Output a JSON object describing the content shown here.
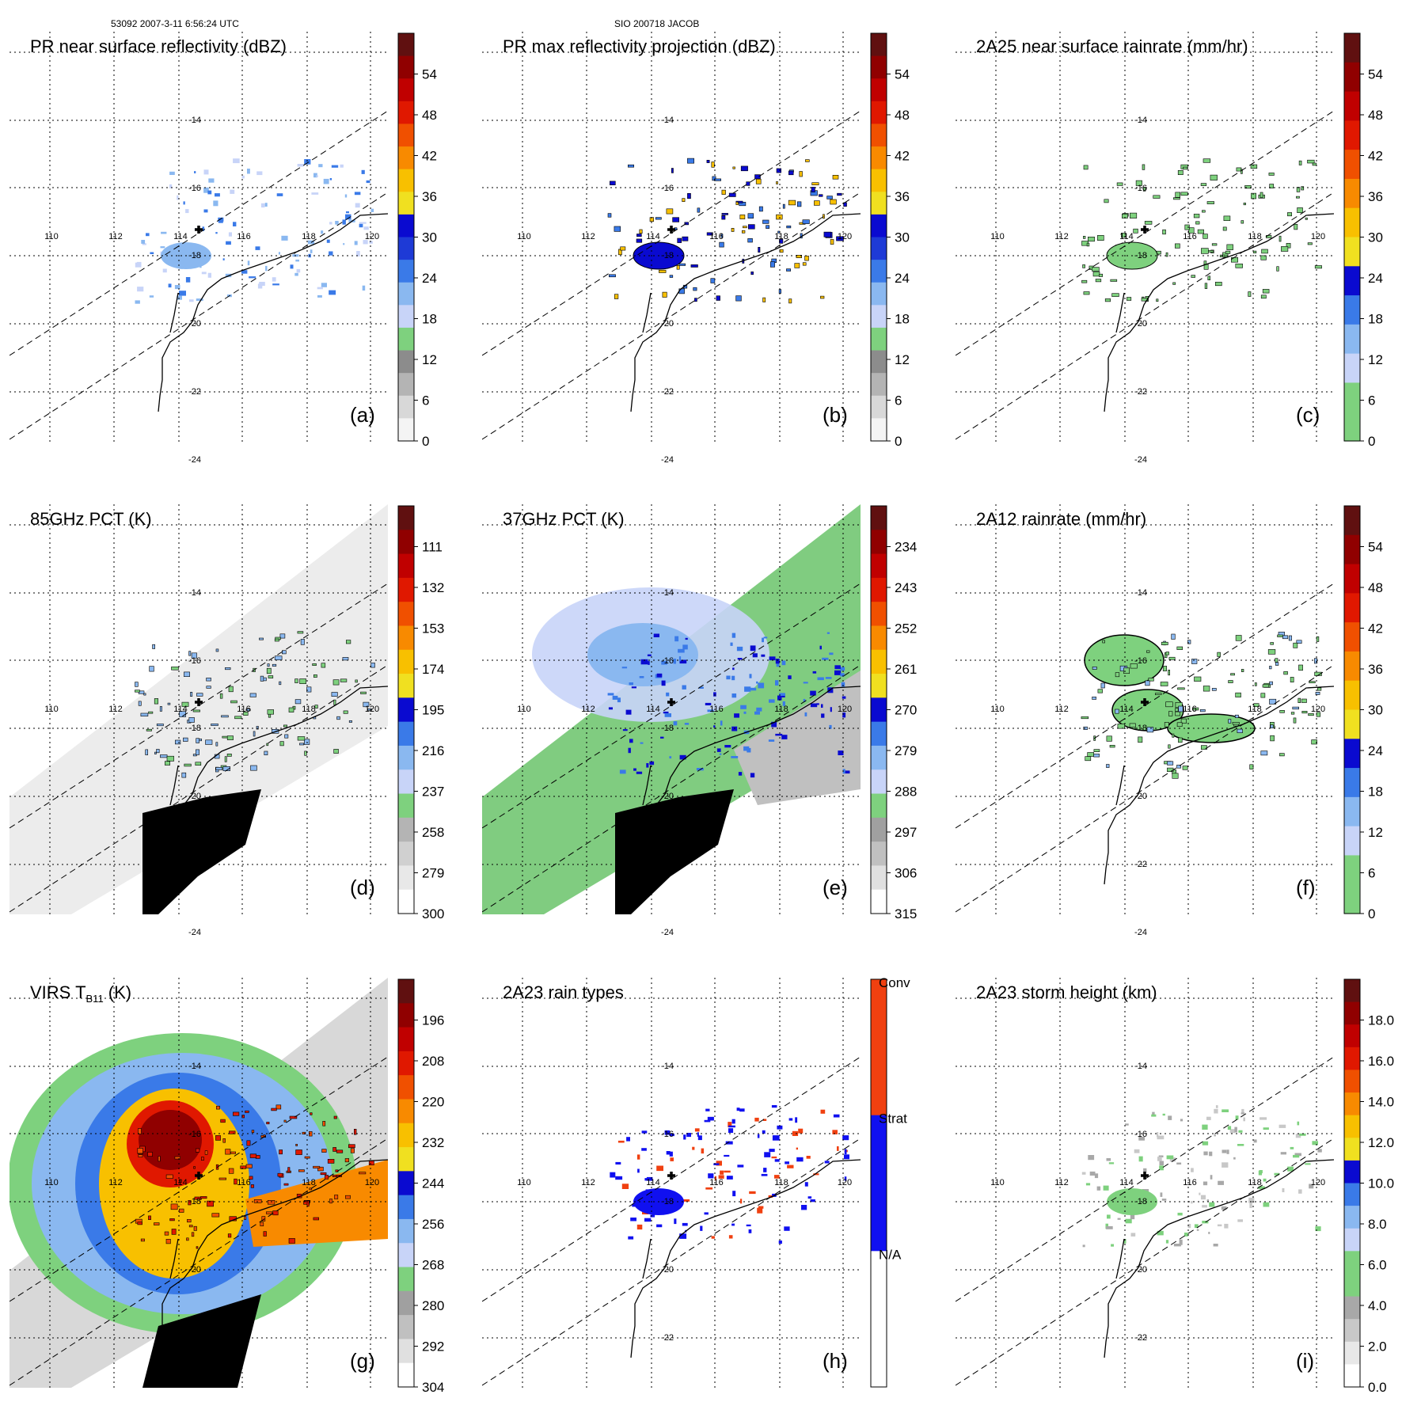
{
  "header": {
    "left": "53092 2007-3-11 6:56:24 UTC",
    "center": "SIO 200718 JACOB"
  },
  "map": {
    "lon_labels": [
      "110",
      "112",
      "114",
      "116",
      "118",
      "120"
    ],
    "lat_labels": [
      "-14",
      "-16",
      "-18",
      "-20",
      "-22",
      "-24"
    ],
    "storm_center_marker": "plus-marker"
  },
  "chart_data": [
    {
      "type": "heatmap",
      "panel": "(a)",
      "title": "PR near surface reflectivity (dBZ)",
      "colorbar": {
        "ticks": [
          "0",
          "6",
          "12",
          "18",
          "24",
          "30",
          "36",
          "42",
          "48",
          "54"
        ],
        "colors": [
          "#f4f4f4",
          "#d8d8d8",
          "#b4b4b4",
          "#8c8c8c",
          "#7ed17e",
          "#c8d4f8",
          "#8ab8f0",
          "#3a7ae8",
          "#1e3ad6",
          "#0a0ad0",
          "#f0e020",
          "#f8c000",
          "#f88a00",
          "#f05000",
          "#e01800",
          "#c00000",
          "#900000",
          "#601010"
        ]
      },
      "features": {
        "rain_field": "blue-stratiform",
        "clouds": "none",
        "contours": false
      }
    },
    {
      "type": "heatmap",
      "panel": "(b)",
      "title": "PR max reflectivity projection (dBZ)",
      "colorbar": {
        "ticks": [
          "0",
          "6",
          "12",
          "18",
          "24",
          "30",
          "36",
          "42",
          "48",
          "54"
        ],
        "colors": [
          "#f4f4f4",
          "#d8d8d8",
          "#b4b4b4",
          "#8c8c8c",
          "#7ed17e",
          "#c8d4f8",
          "#8ab8f0",
          "#3a7ae8",
          "#1e3ad6",
          "#0a0ad0",
          "#f0e020",
          "#f8c000",
          "#f88a00",
          "#f05000",
          "#e01800",
          "#c00000",
          "#900000",
          "#601010"
        ]
      },
      "features": {
        "rain_field": "blue-contoured",
        "clouds": "none",
        "contours": true
      }
    },
    {
      "type": "heatmap",
      "panel": "(c)",
      "title": "2A25 near surface rainrate (mm/hr)",
      "colorbar": {
        "ticks": [
          "0",
          "6",
          "12",
          "18",
          "24",
          "30",
          "36",
          "42",
          "48",
          "54"
        ],
        "colors": [
          "#7ed17e",
          "#7ed17e",
          "#c8d4f8",
          "#8ab8f0",
          "#3a7ae8",
          "#0a0ad0",
          "#f0e020",
          "#f8c000",
          "#f88a00",
          "#f05000",
          "#e01800",
          "#c00000",
          "#900000",
          "#601010"
        ]
      },
      "features": {
        "rain_field": "green-contoured",
        "clouds": "none",
        "contours": true
      }
    },
    {
      "type": "heatmap",
      "panel": "(d)",
      "title": "85GHz PCT (K)",
      "colorbar": {
        "ticks": [
          "300",
          "279",
          "258",
          "237",
          "216",
          "195",
          "174",
          "153",
          "132",
          "111"
        ],
        "colors": [
          "#ffffff",
          "#e8e8e8",
          "#d0d0d0",
          "#b4b4b4",
          "#7ed17e",
          "#c8d4f8",
          "#8ab8f0",
          "#3a7ae8",
          "#0a0ad0",
          "#f0e020",
          "#f8c000",
          "#f88a00",
          "#f05000",
          "#e01800",
          "#c00000",
          "#900000",
          "#601010"
        ]
      },
      "features": {
        "rain_field": "gray-swath",
        "clouds": "land-black",
        "contours": true
      }
    },
    {
      "type": "heatmap",
      "panel": "(e)",
      "title": "37GHz PCT (K)",
      "colorbar": {
        "ticks": [
          "315",
          "306",
          "297",
          "288",
          "279",
          "270",
          "261",
          "252",
          "243",
          "234"
        ],
        "colors": [
          "#ffffff",
          "#e0e0e0",
          "#c0c0c0",
          "#a0a0a0",
          "#7ed17e",
          "#c8d4f8",
          "#8ab8f0",
          "#3a7ae8",
          "#0a0ad0",
          "#f0e020",
          "#f8c000",
          "#f88a00",
          "#f05000",
          "#e01800",
          "#c00000",
          "#900000",
          "#601010"
        ]
      },
      "features": {
        "rain_field": "green-swath",
        "clouds": "land-black",
        "contours": false
      }
    },
    {
      "type": "heatmap",
      "panel": "(f)",
      "title": "2A12 rainrate (mm/hr)",
      "colorbar": {
        "ticks": [
          "0",
          "6",
          "12",
          "18",
          "24",
          "30",
          "36",
          "42",
          "48",
          "54"
        ],
        "colors": [
          "#7ed17e",
          "#7ed17e",
          "#c8d4f8",
          "#8ab8f0",
          "#3a7ae8",
          "#0a0ad0",
          "#f0e020",
          "#f8c000",
          "#f88a00",
          "#f05000",
          "#e01800",
          "#c00000",
          "#900000",
          "#601010"
        ]
      },
      "features": {
        "rain_field": "green-large-contoured",
        "clouds": "none",
        "contours": true
      }
    },
    {
      "type": "heatmap",
      "panel": "(g)",
      "title": "VIRS T",
      "title_subscript": "B11",
      "title_suffix": " (K)",
      "colorbar": {
        "ticks": [
          "304",
          "292",
          "280",
          "268",
          "256",
          "244",
          "232",
          "220",
          "208",
          "196"
        ],
        "colors": [
          "#ffffff",
          "#e0e0e0",
          "#c0c0c0",
          "#a0a0a0",
          "#7ed17e",
          "#c8d4f8",
          "#8ab8f0",
          "#3a7ae8",
          "#0a0ad0",
          "#f0e020",
          "#f8c000",
          "#f88a00",
          "#f05000",
          "#e01800",
          "#c00000",
          "#900000",
          "#601010"
        ]
      },
      "features": {
        "rain_field": "ir-cloud-shield",
        "clouds": "land-black",
        "contours": true
      }
    },
    {
      "type": "heatmap",
      "panel": "(h)",
      "title": "2A23 rain types",
      "colorbar": {
        "categories": [
          "N/A",
          "Strat",
          "Conv"
        ],
        "colors": [
          "#ffffff",
          "#1010f0",
          "#f04010"
        ]
      },
      "features": {
        "rain_field": "rain-type",
        "clouds": "none",
        "contours": false
      }
    },
    {
      "type": "heatmap",
      "panel": "(i)",
      "title": "2A23 storm height (km)",
      "colorbar": {
        "ticks": [
          "0.0",
          "2.0",
          "4.0",
          "6.0",
          "8.0",
          "10.0",
          "12.0",
          "14.0",
          "16.0",
          "18.0"
        ],
        "colors": [
          "#ffffff",
          "#e8e8e8",
          "#c8c8c8",
          "#a8a8a8",
          "#7ed17e",
          "#7ed17e",
          "#c8d4f8",
          "#8ab8f0",
          "#3a7ae8",
          "#0a0ad0",
          "#f0e020",
          "#f8c000",
          "#f88a00",
          "#f05000",
          "#e01800",
          "#c00000",
          "#900000",
          "#601010"
        ]
      },
      "features": {
        "rain_field": "height-green-gray",
        "clouds": "none",
        "contours": false
      }
    }
  ]
}
